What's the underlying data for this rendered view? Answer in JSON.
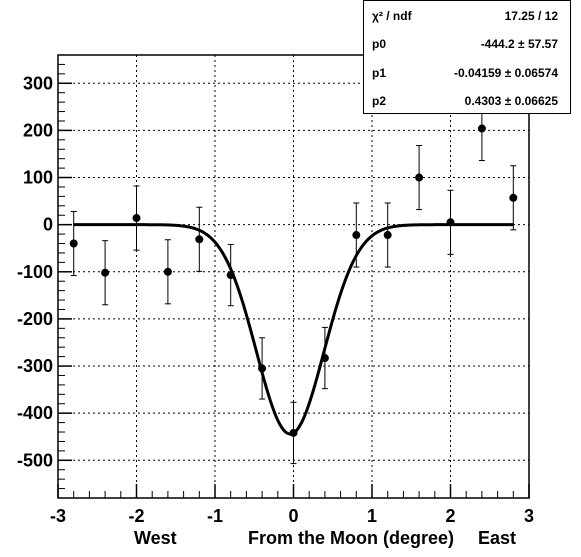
{
  "chart_data": {
    "type": "scatter",
    "xlabel_parts": [
      "West",
      "From the Moon (degree)",
      "East"
    ],
    "xlim": [
      -3,
      3
    ],
    "ylim": [
      -580,
      360
    ],
    "xticks": [
      -3,
      -2,
      -1,
      0,
      1,
      2,
      3
    ],
    "yticks": [
      300,
      200,
      100,
      0,
      -100,
      -200,
      -300,
      -400,
      -500
    ],
    "grid": true,
    "points": [
      {
        "x": -2.8,
        "y": -40,
        "err": 68
      },
      {
        "x": -2.4,
        "y": -102,
        "err": 68
      },
      {
        "x": -2.0,
        "y": 14,
        "err": 68
      },
      {
        "x": -1.6,
        "y": -100,
        "err": 68
      },
      {
        "x": -1.2,
        "y": -31,
        "err": 68
      },
      {
        "x": -0.8,
        "y": -107,
        "err": 65
      },
      {
        "x": -0.4,
        "y": -305,
        "err": 65
      },
      {
        "x": 0.0,
        "y": -442,
        "err": 65
      },
      {
        "x": 0.4,
        "y": -283,
        "err": 65
      },
      {
        "x": 0.8,
        "y": -22,
        "err": 68
      },
      {
        "x": 1.2,
        "y": -22,
        "err": 68
      },
      {
        "x": 1.6,
        "y": 100,
        "err": 68
      },
      {
        "x": 2.0,
        "y": 5,
        "err": 68
      },
      {
        "x": 2.4,
        "y": 204,
        "err": 68
      },
      {
        "x": 2.8,
        "y": 57,
        "err": 68
      }
    ],
    "fit": {
      "function": "gaussian",
      "p0": -444.2,
      "p1": -0.04159,
      "p2": 0.4303
    },
    "stats": [
      {
        "key": "χ² / ndf",
        "value": "17.25 / 12"
      },
      {
        "key": "p0",
        "value": "-444.2 ± 57.57"
      },
      {
        "key": "p1",
        "value": "-0.04159 ± 0.06574"
      },
      {
        "key": "p2",
        "value": "0.4303 ± 0.06625"
      }
    ]
  }
}
